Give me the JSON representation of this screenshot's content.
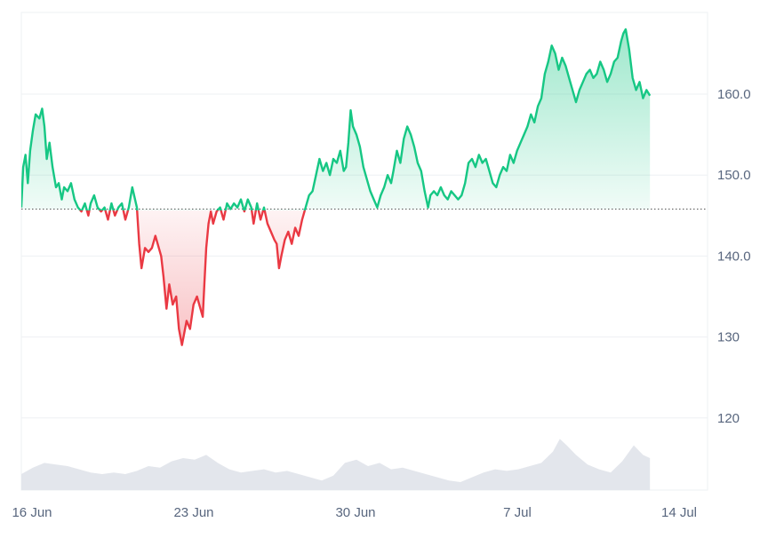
{
  "chart_data": {
    "type": "line",
    "baseline": 145.8,
    "ylim": [
      111,
      170
    ],
    "y_ticks": [
      {
        "value": 160,
        "label": "160.0"
      },
      {
        "value": 150,
        "label": "150.0"
      },
      {
        "value": 140,
        "label": "140.0"
      },
      {
        "value": 130,
        "label": "130"
      },
      {
        "value": 120,
        "label": "120"
      }
    ],
    "x_ticks": [
      {
        "day": 0,
        "label": "16 Jun"
      },
      {
        "day": 7,
        "label": "23 Jun"
      },
      {
        "day": 14,
        "label": "30 Jun"
      },
      {
        "day": 21,
        "label": "7 Jul"
      },
      {
        "day": 28,
        "label": "14 Jul"
      }
    ],
    "x_start": "16 Jun",
    "x_end_day": 29.4,
    "colors": {
      "up": "#16c784",
      "down": "#ea3943",
      "volume": "#e3e6ec",
      "grid": "#eef0f3",
      "baseline": "#555555",
      "tick_text": "#58667e"
    },
    "price_series": [
      [
        0.0,
        146.0
      ],
      [
        0.08,
        151.0
      ],
      [
        0.18,
        152.5
      ],
      [
        0.28,
        149.0
      ],
      [
        0.38,
        153.0
      ],
      [
        0.5,
        155.5
      ],
      [
        0.62,
        157.5
      ],
      [
        0.78,
        157.0
      ],
      [
        0.9,
        158.2
      ],
      [
        1.0,
        156.0
      ],
      [
        1.1,
        152.0
      ],
      [
        1.22,
        154.0
      ],
      [
        1.35,
        151.0
      ],
      [
        1.5,
        148.5
      ],
      [
        1.62,
        149.0
      ],
      [
        1.75,
        147.0
      ],
      [
        1.85,
        148.5
      ],
      [
        2.0,
        148.0
      ],
      [
        2.15,
        149.0
      ],
      [
        2.3,
        147.0
      ],
      [
        2.45,
        146.0
      ],
      [
        2.6,
        145.5
      ],
      [
        2.75,
        146.5
      ],
      [
        2.9,
        145.0
      ],
      [
        3.0,
        146.5
      ],
      [
        3.15,
        147.5
      ],
      [
        3.3,
        146.0
      ],
      [
        3.45,
        145.5
      ],
      [
        3.6,
        146.0
      ],
      [
        3.75,
        144.5
      ],
      [
        3.9,
        146.5
      ],
      [
        4.05,
        145.0
      ],
      [
        4.2,
        146.0
      ],
      [
        4.35,
        146.5
      ],
      [
        4.5,
        144.5
      ],
      [
        4.65,
        146.0
      ],
      [
        4.8,
        148.5
      ],
      [
        5.0,
        146.0
      ],
      [
        5.1,
        141.5
      ],
      [
        5.2,
        138.5
      ],
      [
        5.35,
        141.0
      ],
      [
        5.5,
        140.5
      ],
      [
        5.65,
        141.0
      ],
      [
        5.8,
        142.5
      ],
      [
        5.95,
        141.0
      ],
      [
        6.05,
        140.0
      ],
      [
        6.15,
        137.5
      ],
      [
        6.28,
        133.5
      ],
      [
        6.4,
        136.5
      ],
      [
        6.55,
        134.0
      ],
      [
        6.7,
        135.0
      ],
      [
        6.82,
        131.0
      ],
      [
        6.95,
        129.0
      ],
      [
        7.05,
        130.5
      ],
      [
        7.15,
        132.0
      ],
      [
        7.3,
        131.0
      ],
      [
        7.45,
        134.0
      ],
      [
        7.6,
        135.0
      ],
      [
        7.75,
        133.5
      ],
      [
        7.85,
        132.5
      ],
      [
        7.92,
        136.5
      ],
      [
        8.0,
        141.0
      ],
      [
        8.1,
        144.0
      ],
      [
        8.2,
        145.5
      ],
      [
        8.3,
        144.0
      ],
      [
        8.45,
        145.5
      ],
      [
        8.6,
        146.0
      ],
      [
        8.75,
        144.5
      ],
      [
        8.9,
        146.5
      ],
      [
        9.05,
        145.8
      ],
      [
        9.2,
        146.5
      ],
      [
        9.35,
        146.0
      ],
      [
        9.5,
        147.0
      ],
      [
        9.65,
        145.5
      ],
      [
        9.8,
        147.0
      ],
      [
        9.95,
        146.0
      ],
      [
        10.05,
        144.0
      ],
      [
        10.2,
        146.5
      ],
      [
        10.35,
        144.5
      ],
      [
        10.5,
        146.0
      ],
      [
        10.65,
        144.0
      ],
      [
        10.8,
        143.0
      ],
      [
        10.95,
        142.0
      ],
      [
        11.05,
        141.5
      ],
      [
        11.15,
        138.5
      ],
      [
        11.25,
        140.0
      ],
      [
        11.4,
        142.0
      ],
      [
        11.55,
        143.0
      ],
      [
        11.7,
        141.5
      ],
      [
        11.85,
        143.5
      ],
      [
        12.0,
        142.5
      ],
      [
        12.15,
        144.5
      ],
      [
        12.3,
        146.0
      ],
      [
        12.45,
        147.5
      ],
      [
        12.6,
        148.0
      ],
      [
        12.75,
        150.0
      ],
      [
        12.9,
        152.0
      ],
      [
        13.05,
        150.5
      ],
      [
        13.2,
        151.5
      ],
      [
        13.35,
        150.0
      ],
      [
        13.5,
        152.0
      ],
      [
        13.65,
        151.5
      ],
      [
        13.8,
        153.0
      ],
      [
        13.95,
        150.5
      ],
      [
        14.05,
        151.0
      ],
      [
        14.15,
        154.0
      ],
      [
        14.25,
        158.0
      ],
      [
        14.35,
        156.0
      ],
      [
        14.5,
        155.0
      ],
      [
        14.65,
        153.5
      ],
      [
        14.8,
        151.0
      ],
      [
        14.95,
        149.5
      ],
      [
        15.1,
        148.0
      ],
      [
        15.25,
        147.0
      ],
      [
        15.4,
        146.0
      ],
      [
        15.55,
        147.5
      ],
      [
        15.7,
        148.5
      ],
      [
        15.85,
        150.0
      ],
      [
        16.0,
        149.0
      ],
      [
        16.1,
        150.5
      ],
      [
        16.25,
        153.0
      ],
      [
        16.4,
        151.5
      ],
      [
        16.55,
        154.5
      ],
      [
        16.7,
        156.0
      ],
      [
        16.85,
        155.0
      ],
      [
        17.0,
        153.5
      ],
      [
        17.15,
        151.5
      ],
      [
        17.3,
        150.5
      ],
      [
        17.45,
        148.0
      ],
      [
        17.6,
        146.0
      ],
      [
        17.7,
        147.5
      ],
      [
        17.85,
        148.0
      ],
      [
        18.0,
        147.5
      ],
      [
        18.15,
        148.5
      ],
      [
        18.3,
        147.5
      ],
      [
        18.45,
        147.0
      ],
      [
        18.6,
        148.0
      ],
      [
        18.75,
        147.5
      ],
      [
        18.9,
        147.0
      ],
      [
        19.05,
        147.5
      ],
      [
        19.2,
        149.0
      ],
      [
        19.35,
        151.5
      ],
      [
        19.5,
        152.0
      ],
      [
        19.65,
        151.0
      ],
      [
        19.8,
        152.5
      ],
      [
        19.95,
        151.5
      ],
      [
        20.1,
        152.0
      ],
      [
        20.25,
        150.5
      ],
      [
        20.4,
        149.0
      ],
      [
        20.55,
        148.5
      ],
      [
        20.7,
        150.0
      ],
      [
        20.85,
        151.0
      ],
      [
        21.0,
        150.5
      ],
      [
        21.15,
        152.5
      ],
      [
        21.3,
        151.5
      ],
      [
        21.45,
        153.0
      ],
      [
        21.6,
        154.0
      ],
      [
        21.75,
        155.0
      ],
      [
        21.9,
        156.0
      ],
      [
        22.05,
        157.5
      ],
      [
        22.2,
        156.5
      ],
      [
        22.35,
        158.5
      ],
      [
        22.5,
        159.5
      ],
      [
        22.65,
        162.5
      ],
      [
        22.8,
        164.0
      ],
      [
        22.95,
        166.0
      ],
      [
        23.1,
        165.0
      ],
      [
        23.25,
        163.0
      ],
      [
        23.4,
        164.5
      ],
      [
        23.55,
        163.5
      ],
      [
        23.7,
        162.0
      ],
      [
        23.85,
        160.5
      ],
      [
        24.0,
        159.0
      ],
      [
        24.15,
        160.5
      ],
      [
        24.3,
        161.5
      ],
      [
        24.45,
        162.5
      ],
      [
        24.6,
        163.0
      ],
      [
        24.75,
        162.0
      ],
      [
        24.9,
        162.5
      ],
      [
        25.05,
        164.0
      ],
      [
        25.2,
        163.0
      ],
      [
        25.35,
        161.5
      ],
      [
        25.5,
        162.5
      ],
      [
        25.65,
        164.0
      ],
      [
        25.8,
        164.5
      ],
      [
        25.95,
        166.5
      ],
      [
        26.05,
        167.5
      ],
      [
        26.15,
        168.0
      ],
      [
        26.3,
        165.5
      ],
      [
        26.45,
        162.0
      ],
      [
        26.6,
        160.5
      ],
      [
        26.75,
        161.5
      ],
      [
        26.9,
        159.5
      ],
      [
        27.05,
        160.5
      ],
      [
        27.2,
        159.8
      ]
    ],
    "volume_series": [
      [
        0.0,
        5.0
      ],
      [
        0.5,
        7.0
      ],
      [
        1.0,
        8.5
      ],
      [
        1.5,
        8.0
      ],
      [
        2.0,
        7.5
      ],
      [
        2.5,
        6.5
      ],
      [
        3.0,
        5.5
      ],
      [
        3.5,
        5.0
      ],
      [
        4.0,
        5.5
      ],
      [
        4.5,
        5.0
      ],
      [
        5.0,
        6.0
      ],
      [
        5.5,
        7.5
      ],
      [
        6.0,
        7.0
      ],
      [
        6.5,
        9.0
      ],
      [
        7.0,
        10.0
      ],
      [
        7.5,
        9.5
      ],
      [
        8.0,
        11.0
      ],
      [
        8.5,
        8.5
      ],
      [
        9.0,
        6.5
      ],
      [
        9.5,
        5.5
      ],
      [
        10.0,
        6.0
      ],
      [
        10.5,
        6.5
      ],
      [
        11.0,
        5.5
      ],
      [
        11.5,
        6.0
      ],
      [
        12.0,
        5.0
      ],
      [
        12.5,
        4.0
      ],
      [
        13.0,
        3.0
      ],
      [
        13.5,
        4.5
      ],
      [
        14.0,
        8.5
      ],
      [
        14.5,
        9.5
      ],
      [
        15.0,
        7.5
      ],
      [
        15.5,
        8.5
      ],
      [
        16.0,
        6.5
      ],
      [
        16.5,
        7.0
      ],
      [
        17.0,
        6.0
      ],
      [
        17.5,
        5.0
      ],
      [
        18.0,
        4.0
      ],
      [
        18.5,
        3.0
      ],
      [
        19.0,
        2.5
      ],
      [
        19.5,
        4.0
      ],
      [
        20.0,
        5.5
      ],
      [
        20.5,
        6.5
      ],
      [
        21.0,
        6.0
      ],
      [
        21.5,
        6.5
      ],
      [
        22.0,
        7.5
      ],
      [
        22.5,
        8.5
      ],
      [
        23.0,
        12.0
      ],
      [
        23.3,
        16.0
      ],
      [
        23.6,
        14.0
      ],
      [
        24.0,
        11.0
      ],
      [
        24.5,
        8.0
      ],
      [
        25.0,
        6.5
      ],
      [
        25.5,
        5.5
      ],
      [
        26.0,
        9.0
      ],
      [
        26.5,
        14.0
      ],
      [
        26.9,
        11.0
      ],
      [
        27.2,
        10.0
      ]
    ]
  }
}
